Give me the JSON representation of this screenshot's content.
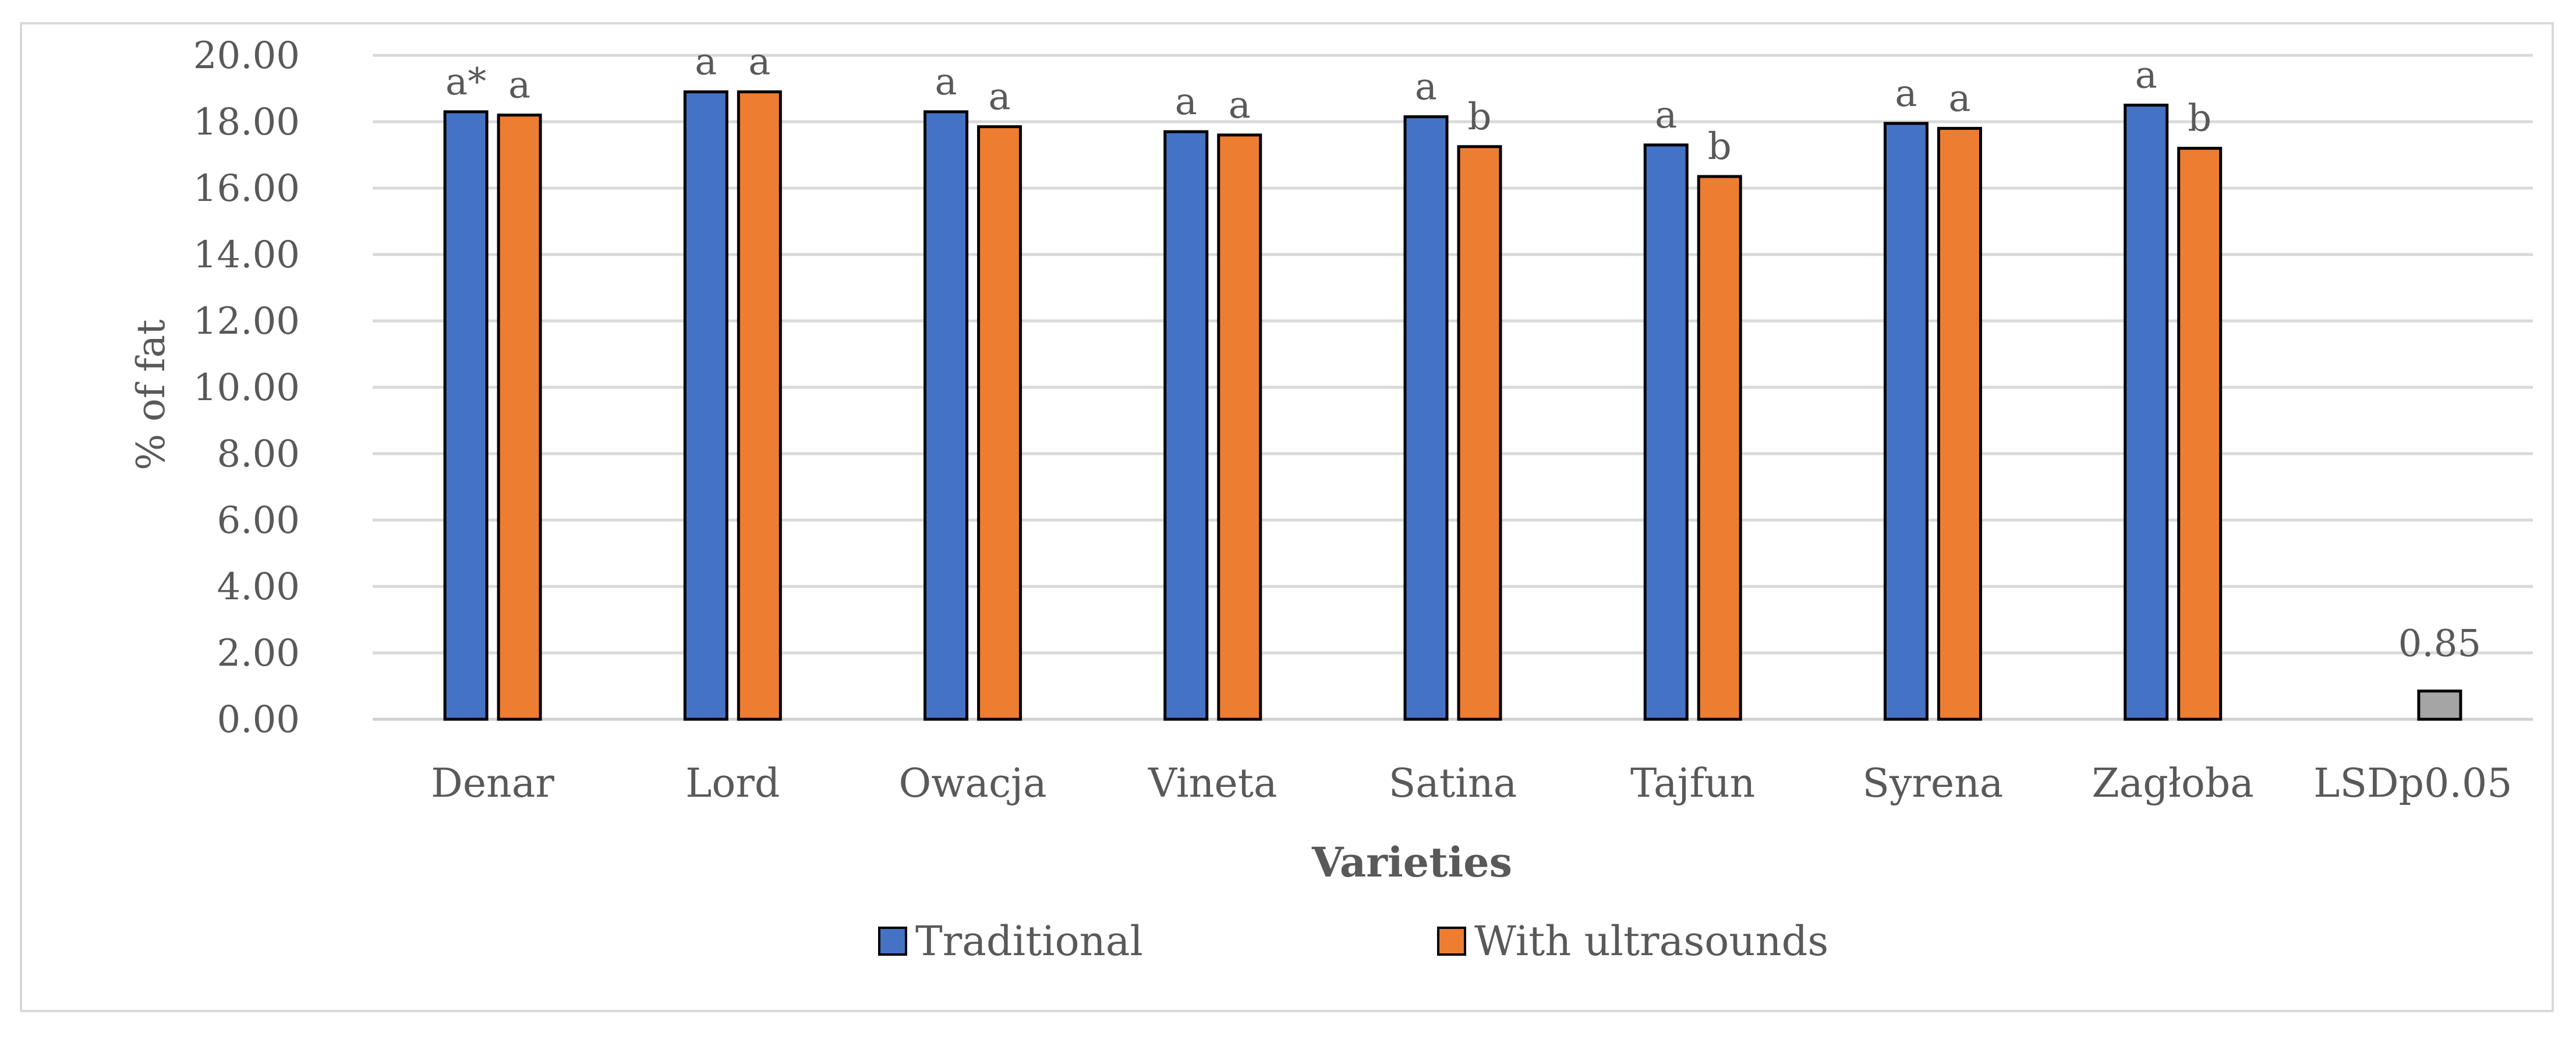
{
  "chart_data": {
    "type": "bar",
    "title": "",
    "xlabel": "Varieties",
    "ylabel": "% of fat",
    "ylim": [
      0,
      20
    ],
    "yticks": [
      "0.00",
      "2.00",
      "4.00",
      "6.00",
      "8.00",
      "10.00",
      "12.00",
      "14.00",
      "16.00",
      "18.00",
      "20.00"
    ],
    "grid": true,
    "legend_position": "bottom",
    "categories": [
      "Denar",
      "Lord",
      "Owacja",
      "Vineta",
      "Satina",
      "Tajfun",
      "Syrena",
      "Zagłoba",
      "LSDp0.05"
    ],
    "series": [
      {
        "name": "Traditional",
        "color": "#4472c4",
        "values": [
          18.3,
          18.9,
          18.3,
          17.7,
          18.15,
          17.3,
          17.95,
          18.5,
          null
        ],
        "labels": [
          "a*",
          "a",
          "a",
          "a",
          "a",
          "a",
          "a",
          "a",
          ""
        ]
      },
      {
        "name": "With ultrasounds",
        "color": "#ed7d31",
        "values": [
          18.2,
          18.9,
          17.85,
          17.6,
          17.25,
          16.35,
          17.8,
          17.2,
          null
        ],
        "labels": [
          "a",
          "a",
          "a",
          "a",
          "b",
          "b",
          "a",
          "b",
          ""
        ]
      }
    ],
    "lsd": {
      "category": "LSDp0.05",
      "value": 0.85,
      "label": "0.85",
      "color": "#a5a5a5"
    }
  }
}
